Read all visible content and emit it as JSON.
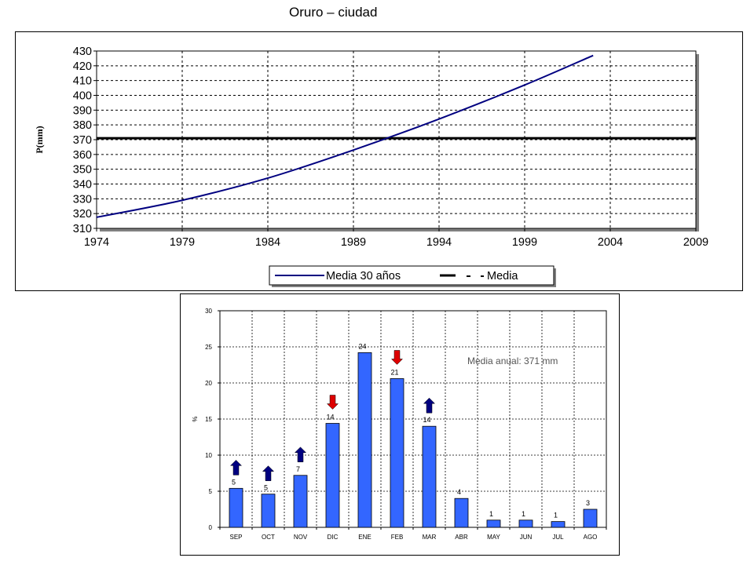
{
  "page_title": "Oruro – ciudad",
  "chart_data": [
    {
      "type": "line",
      "title": "",
      "ylabel": "P(mm)",
      "xlabel": "",
      "xlim": [
        1974,
        2009
      ],
      "ylim": [
        310,
        430
      ],
      "x_ticks": [
        "1974",
        "1979",
        "1984",
        "1989",
        "1994",
        "1999",
        "2004",
        "2009"
      ],
      "y_ticks": [
        "310",
        "320",
        "330",
        "340",
        "350",
        "360",
        "370",
        "380",
        "390",
        "400",
        "410",
        "420",
        "430"
      ],
      "grid": true,
      "legend_position": "bottom",
      "series": [
        {
          "name": "Media 30 años",
          "color": "#000080",
          "style": "solid",
          "x": [
            1974,
            1979,
            1984,
            1989,
            1994,
            1999,
            2003
          ],
          "y": [
            317.5,
            329,
            344,
            363,
            384,
            407,
            427
          ]
        },
        {
          "name": "Media",
          "color": "#000000",
          "style": "solid-thick",
          "x": [
            1974,
            2009
          ],
          "y": [
            371,
            371
          ]
        }
      ]
    },
    {
      "type": "bar",
      "title": "",
      "ylabel": "%",
      "xlabel": "",
      "ylim": [
        0,
        30
      ],
      "y_ticks": [
        "0",
        "5",
        "10",
        "15",
        "20",
        "25",
        "30"
      ],
      "grid": true,
      "bar_color": "#3366ff",
      "categories": [
        "SEP",
        "OCT",
        "NOV",
        "DIC",
        "ENE",
        "FEB",
        "MAR",
        "ABR",
        "MAY",
        "JUN",
        "JUL",
        "AGO"
      ],
      "values": [
        5.4,
        4.6,
        7.2,
        14.4,
        24.2,
        20.6,
        14.0,
        4.0,
        1.0,
        1.0,
        0.8,
        2.5
      ],
      "data_labels": [
        "5",
        "5",
        "7",
        "14",
        "24",
        "21",
        "14",
        "4",
        "1",
        "1",
        "1",
        "3"
      ],
      "annotation": "Media anual: 371 mm",
      "arrows": [
        {
          "category": "SEP",
          "direction": "up",
          "color": "#000080"
        },
        {
          "category": "OCT",
          "direction": "up",
          "color": "#000080"
        },
        {
          "category": "NOV",
          "direction": "up",
          "color": "#000080"
        },
        {
          "category": "DIC",
          "direction": "down",
          "color": "#dd0000"
        },
        {
          "category": "FEB",
          "direction": "down",
          "color": "#dd0000"
        },
        {
          "category": "MAR",
          "direction": "up",
          "color": "#000080"
        }
      ]
    }
  ]
}
